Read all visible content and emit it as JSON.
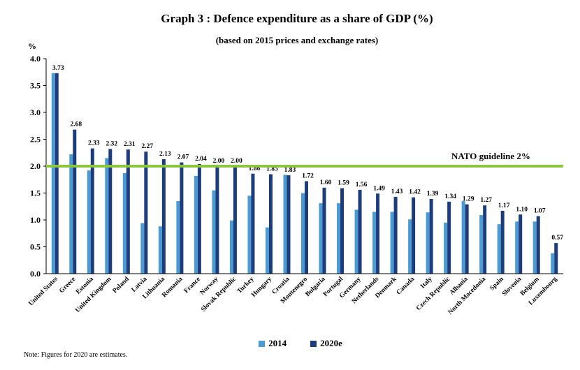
{
  "chart_data": {
    "type": "bar",
    "title": "Graph 3 : Defence expenditure as a share of GDP (%)",
    "subtitle": "(based on 2015 prices and exchange rates)",
    "ylabel": "%",
    "ylim": [
      0,
      4.0
    ],
    "yticks": [
      "0.0",
      "0.5",
      "1.0",
      "1.5",
      "2.0",
      "2.5",
      "3.0",
      "3.5",
      "4.0"
    ],
    "grid": false,
    "legend_position": "bottom",
    "categories": [
      "United States",
      "Greece",
      "Estonia",
      "United Kingdom",
      "Poland",
      "Latvia",
      "Lithuania",
      "Romania",
      "France",
      "Norway",
      "Slovak Republic",
      "Turkey",
      "Hungary",
      "Croatia",
      "Montenegro",
      "Bulgaria",
      "Portugal",
      "Germany",
      "Netherlands",
      "Denmark",
      "Canada",
      "Italy",
      "Czech Republic",
      "Albania",
      "North Macedonia",
      "Spain",
      "Slovenia",
      "Belgium",
      "Luxembourg"
    ],
    "series": [
      {
        "name": "2014",
        "color": "#4b9bd2",
        "values": [
          3.73,
          2.22,
          1.92,
          2.15,
          1.87,
          0.94,
          0.88,
          1.35,
          1.82,
          1.55,
          0.99,
          1.45,
          0.86,
          1.84,
          1.5,
          1.31,
          1.31,
          1.19,
          1.15,
          1.15,
          1.01,
          1.14,
          0.95,
          1.35,
          1.09,
          0.92,
          0.97,
          0.97,
          0.38
        ]
      },
      {
        "name": "2020e",
        "color": "#1c3c7c",
        "values": [
          3.73,
          2.68,
          2.33,
          2.32,
          2.31,
          2.27,
          2.13,
          2.07,
          2.04,
          2.0,
          2.0,
          1.86,
          1.85,
          1.83,
          1.72,
          1.6,
          1.59,
          1.56,
          1.49,
          1.43,
          1.42,
          1.39,
          1.34,
          1.29,
          1.27,
          1.17,
          1.1,
          1.07,
          0.57
        ]
      }
    ],
    "data_labels": [
      "3.73",
      "2.68",
      "2.33",
      "2.32",
      "2.31",
      "2.27",
      "2.13",
      "2.07",
      "2.04",
      "2.00",
      "2.00",
      "1.86",
      "1.85",
      "1.83",
      "1.72",
      "1.60",
      "1.59",
      "1.56",
      "1.49",
      "1.43",
      "1.42",
      "1.39",
      "1.34",
      "1.29",
      "1.27",
      "1.17",
      "1.10",
      "1.07",
      "0.57"
    ],
    "reference_line": {
      "value": 2.0,
      "label": "NATO guideline 2%",
      "color": "#8cc63f"
    },
    "note": "Note: Figures for 2020 are estimates."
  }
}
